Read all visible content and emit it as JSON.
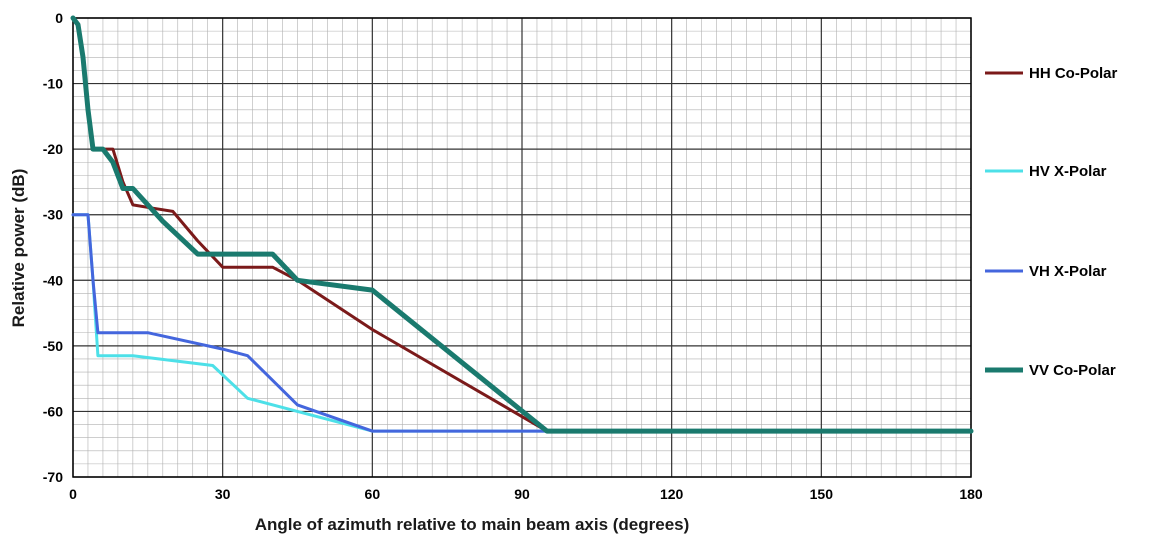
{
  "chart_data": {
    "type": "line",
    "title": "",
    "xlabel": "Angle of azimuth relative to main beam axis (degrees)",
    "ylabel": "Relative power (dB)",
    "xlim": [
      0,
      180
    ],
    "ylim": [
      -70,
      0
    ],
    "xticks": [
      0,
      30,
      60,
      90,
      120,
      150,
      180
    ],
    "yticks": [
      0,
      -10,
      -20,
      -30,
      -40,
      -50,
      -60,
      -70
    ],
    "grid": true,
    "minor_grid": true,
    "legend_position": "right",
    "series": [
      {
        "name": "HH Co-Polar",
        "color": "#7b1a1a",
        "width": 3,
        "points": [
          [
            0,
            0
          ],
          [
            1,
            -1
          ],
          [
            2,
            -6
          ],
          [
            3,
            -14
          ],
          [
            4,
            -20
          ],
          [
            6,
            -20
          ],
          [
            8,
            -20
          ],
          [
            10,
            -25
          ],
          [
            12,
            -28.5
          ],
          [
            16,
            -29
          ],
          [
            20,
            -29.5
          ],
          [
            25,
            -34
          ],
          [
            30,
            -38
          ],
          [
            40,
            -38
          ],
          [
            45,
            -40
          ],
          [
            60,
            -47.5
          ],
          [
            95,
            -63
          ],
          [
            180,
            -63
          ]
        ]
      },
      {
        "name": "HV X-Polar",
        "color": "#4de0e8",
        "width": 3,
        "points": [
          [
            0,
            -30
          ],
          [
            3,
            -30
          ],
          [
            4,
            -40
          ],
          [
            5,
            -51.5
          ],
          [
            12,
            -51.5
          ],
          [
            28,
            -53
          ],
          [
            35,
            -58
          ],
          [
            45,
            -60
          ],
          [
            60,
            -63
          ],
          [
            95,
            -63
          ],
          [
            180,
            -63
          ]
        ]
      },
      {
        "name": "VH X-Polar",
        "color": "#4466dd",
        "width": 3,
        "points": [
          [
            0,
            -30
          ],
          [
            3,
            -30
          ],
          [
            4,
            -40
          ],
          [
            5,
            -48
          ],
          [
            15,
            -48
          ],
          [
            30,
            -50.5
          ],
          [
            35,
            -51.5
          ],
          [
            45,
            -59
          ],
          [
            60,
            -63
          ],
          [
            95,
            -63
          ],
          [
            180,
            -63
          ]
        ]
      },
      {
        "name": "VV Co-Polar",
        "color": "#1a7a6e",
        "width": 5,
        "points": [
          [
            0,
            0
          ],
          [
            1,
            -1
          ],
          [
            2,
            -6
          ],
          [
            3,
            -14
          ],
          [
            4,
            -20
          ],
          [
            6,
            -20
          ],
          [
            8,
            -22
          ],
          [
            10,
            -26
          ],
          [
            12,
            -26
          ],
          [
            18,
            -31
          ],
          [
            25,
            -36
          ],
          [
            40,
            -36
          ],
          [
            45,
            -40
          ],
          [
            60,
            -41.5
          ],
          [
            95,
            -63
          ],
          [
            180,
            -63
          ]
        ]
      }
    ]
  }
}
